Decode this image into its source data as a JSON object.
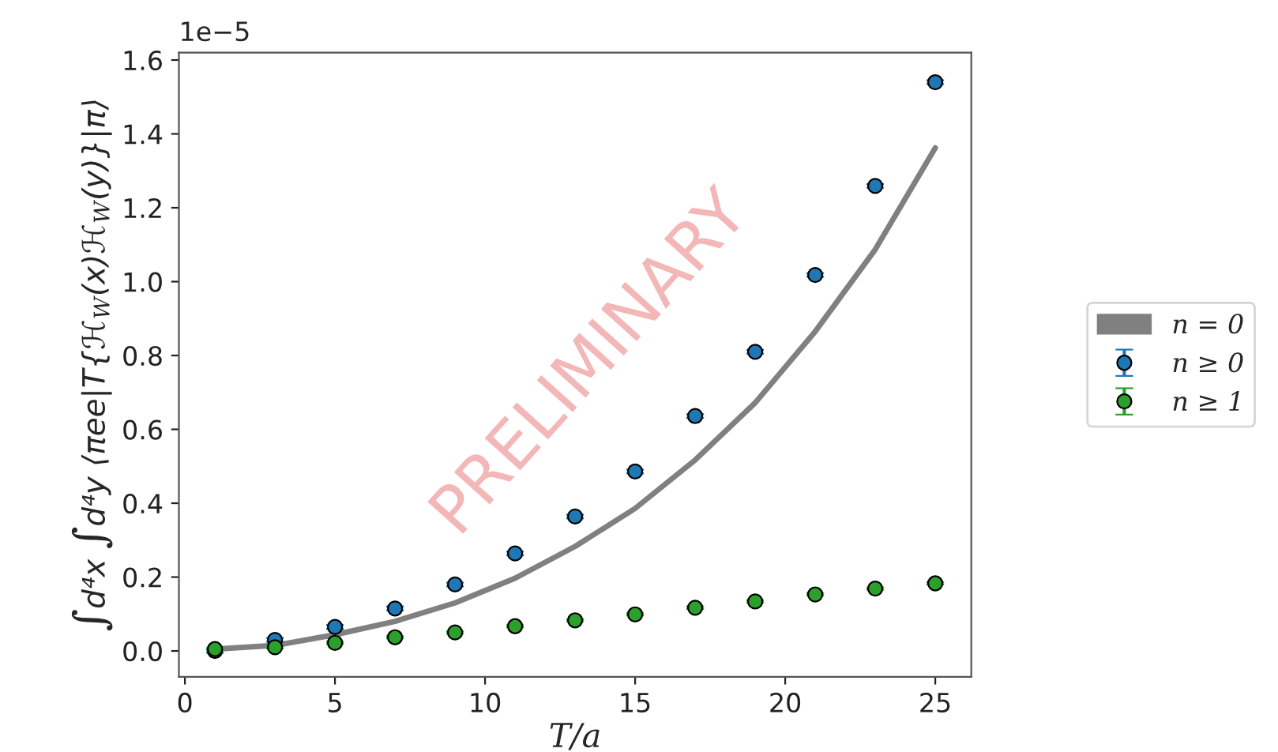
{
  "chart_data": {
    "type": "scatter",
    "xlabel": "T/a",
    "ylabel": "∫d⁴x ∫d⁴y ⟨πee|T{ℋ$_{W}$(x)ℋ$_{W}$(y)}|π⟩",
    "x": [
      1,
      3,
      5,
      7,
      9,
      11,
      13,
      15,
      17,
      19,
      21,
      23,
      25
    ],
    "series": [
      {
        "name": "n = 0",
        "type": "line",
        "marker": "none",
        "color": "#808080",
        "values": [
          0.005,
          0.015,
          0.044,
          0.08,
          0.13,
          0.197,
          0.283,
          0.386,
          0.517,
          0.672,
          0.865,
          1.087,
          1.362
        ]
      },
      {
        "name": "n ≥ 0",
        "marker": "circle",
        "color": "#1f77b4",
        "values": [
          0.0,
          0.03,
          0.065,
          0.115,
          0.18,
          0.264,
          0.364,
          0.486,
          0.636,
          0.81,
          1.018,
          1.259,
          1.54
        ],
        "errors": [
          0.005,
          0.005,
          0.005,
          0.005,
          0.005,
          0.005,
          0.005,
          0.005,
          0.005,
          0.005,
          0.005,
          0.005,
          0.005
        ]
      },
      {
        "name": "n ≥ 1",
        "marker": "circle",
        "color": "#2ca02c",
        "values": [
          0.005,
          0.01,
          0.022,
          0.037,
          0.05,
          0.067,
          0.083,
          0.099,
          0.117,
          0.134,
          0.153,
          0.169,
          0.183
        ],
        "errors": [
          0.003,
          0.003,
          0.003,
          0.003,
          0.003,
          0.003,
          0.003,
          0.003,
          0.003,
          0.003,
          0.003,
          0.003,
          0.003
        ]
      }
    ],
    "xlim": [
      -0.2,
      26.2
    ],
    "ylim": [
      -0.07,
      1.62
    ],
    "xticks": [
      0,
      5,
      10,
      15,
      20,
      25
    ],
    "yticks": [
      {
        "value": 0.0,
        "label": "0.0"
      },
      {
        "value": 0.2,
        "label": "0.2"
      },
      {
        "value": 0.4,
        "label": "0.4"
      },
      {
        "value": 0.6,
        "label": "0.6"
      },
      {
        "value": 0.8,
        "label": "0.8"
      },
      {
        "value": 1.0,
        "label": "1.0"
      },
      {
        "value": 1.2,
        "label": "1.2"
      },
      {
        "value": 1.4,
        "label": "1.4"
      },
      {
        "value": 1.6,
        "label": "1.6"
      }
    ],
    "annotations": [
      "1e−5",
      "PRELIMINARY"
    ],
    "grid": false,
    "legend": "right"
  }
}
